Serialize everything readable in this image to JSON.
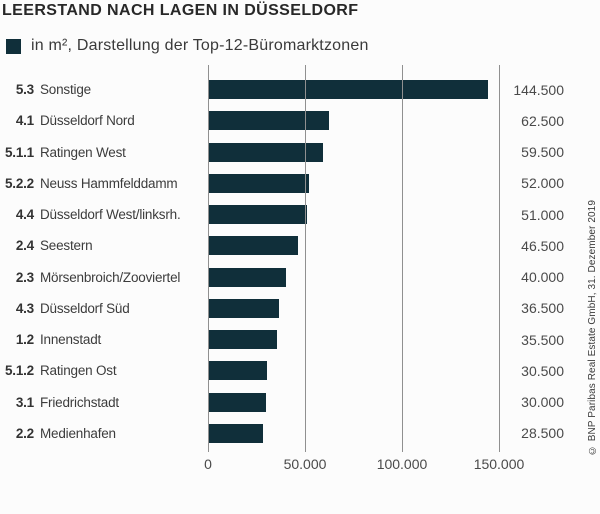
{
  "title": "LEERSTAND NACH LAGEN IN DÜSSELDORF",
  "legend": {
    "label": "in m², Darstellung der Top-12-Büromarktzonen"
  },
  "source_note": "© BNP Paribas Real Estate GmbH, 31. Dezember 2019",
  "colors": {
    "bar": "#102f3a",
    "gridline": "#909090",
    "title_text": "#282828",
    "label_text": "#3c3c3c",
    "value_text": "#4a4a4a"
  },
  "chart_data": {
    "type": "bar",
    "orientation": "horizontal",
    "title": "LEERSTAND NACH LAGEN IN DÜSSELDORF",
    "subtitle": "in m², Darstellung der Top-12-Büromarktzonen",
    "unit": "m²",
    "xlim": [
      0,
      150000
    ],
    "grid": "vertical",
    "legend_position": "top-left",
    "x_ticks": [
      {
        "value": 0,
        "label": "0"
      },
      {
        "value": 50000,
        "label": "50.000"
      },
      {
        "value": 100000,
        "label": "100.000"
      },
      {
        "value": 150000,
        "label": "150.000"
      }
    ],
    "rows": [
      {
        "code": "5.3",
        "name": "Sonstige",
        "value": 144500,
        "value_label": "144.500"
      },
      {
        "code": "4.1",
        "name": "Düsseldorf Nord",
        "value": 62500,
        "value_label": "62.500"
      },
      {
        "code": "5.1.1",
        "name": "Ratingen West",
        "value": 59500,
        "value_label": "59.500"
      },
      {
        "code": "5.2.2",
        "name": "Neuss Hammfelddamm",
        "value": 52000,
        "value_label": "52.000"
      },
      {
        "code": "4.4",
        "name": "Düsseldorf West/linksrh.",
        "value": 51000,
        "value_label": "51.000"
      },
      {
        "code": "2.4",
        "name": "Seestern",
        "value": 46500,
        "value_label": "46.500"
      },
      {
        "code": "2.3",
        "name": "Mörsenbroich/Zooviertel",
        "value": 40000,
        "value_label": "40.000"
      },
      {
        "code": "4.3",
        "name": "Düsseldorf Süd",
        "value": 36500,
        "value_label": "36.500"
      },
      {
        "code": "1.2",
        "name": "Innenstadt",
        "value": 35500,
        "value_label": "35.500"
      },
      {
        "code": "5.1.2",
        "name": "Ratingen Ost",
        "value": 30500,
        "value_label": "30.500"
      },
      {
        "code": "3.1",
        "name": "Friedrichstadt",
        "value": 30000,
        "value_label": "30.000"
      },
      {
        "code": "2.2",
        "name": "Medienhafen",
        "value": 28500,
        "value_label": "28.500"
      }
    ]
  }
}
